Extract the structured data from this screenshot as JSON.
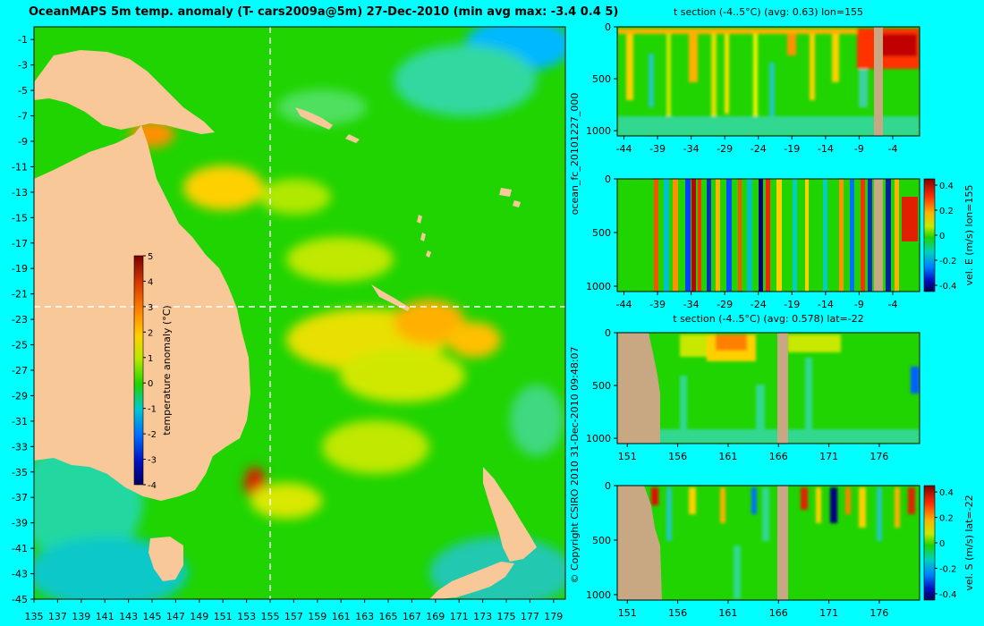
{
  "header": {
    "title": "OceanMAPS 5m temp. anomaly (T- cars2009a@5m) 27-Dec-2010 (min avg max: -3.4 0.4 5)"
  },
  "side_texts": {
    "run_id": "ocean_fc_20101227_000",
    "copyright": "© Copyright CSIRO 2010   31-Dec-2010 09:48:07"
  },
  "colors": {
    "land": "#f9c898",
    "section_land": "#c8a882",
    "background": "#00ffff",
    "ocean_base": "#1fd400",
    "crosshair": "#ffffff"
  },
  "chart_data": [
    {
      "id": "map",
      "type": "heatmap",
      "title": "OceanMAPS 5m temp. anomaly (T- cars2009a@5m) 27-Dec-2010 (min avg max: -3.4 0.4 5)",
      "x_ticks": [
        135,
        137,
        139,
        141,
        143,
        145,
        147,
        149,
        151,
        153,
        155,
        157,
        159,
        161,
        163,
        165,
        167,
        169,
        171,
        173,
        175,
        177,
        179
      ],
      "y_ticks": [
        -1,
        -3,
        -5,
        -7,
        -9,
        -11,
        -13,
        -15,
        -17,
        -19,
        -21,
        -23,
        -25,
        -27,
        -29,
        -31,
        -33,
        -35,
        -37,
        -39,
        -41,
        -43,
        -45
      ],
      "xlim": [
        135,
        180
      ],
      "ylim": [
        -45,
        0
      ],
      "crosshair": {
        "lon": 155,
        "lat": -22
      },
      "colorbar": {
        "label": "temperature anomaly (°C)",
        "ticks": [
          5,
          4,
          3,
          2,
          1,
          0,
          -1,
          -2,
          -3,
          -4
        ],
        "range": [
          -4,
          5
        ]
      }
    },
    {
      "id": "section1",
      "type": "heatmap",
      "title": "t section (-4..5°C) (avg: 0.63) lon=155",
      "x_ticks": [
        -44,
        -39,
        -34,
        -29,
        -24,
        -19,
        -14,
        -9,
        -4
      ],
      "y_ticks": [
        0,
        500,
        1000
      ],
      "xlim": [
        -45,
        0
      ],
      "ylim": [
        1050,
        0
      ]
    },
    {
      "id": "section2",
      "type": "heatmap",
      "title": "",
      "x_ticks": [
        -44,
        -39,
        -34,
        -29,
        -24,
        -19,
        -14,
        -9,
        -4
      ],
      "y_ticks": [
        0,
        500,
        1000
      ],
      "xlim": [
        -45,
        0
      ],
      "ylim": [
        1050,
        0
      ],
      "colorbar": {
        "label": "vel. E (m/s) lon=155",
        "ticks": [
          "0.4",
          "0.2",
          "0",
          "-0.2",
          "-0.4"
        ],
        "range": [
          -0.45,
          0.45
        ]
      }
    },
    {
      "id": "section3",
      "type": "heatmap",
      "title": "t section (-4..5°C) (avg: 0.578) lat=-22",
      "x_ticks": [
        151,
        156,
        161,
        166,
        171,
        176
      ],
      "y_ticks": [
        0,
        500,
        1000
      ],
      "xlim": [
        150,
        180
      ],
      "ylim": [
        1050,
        0
      ]
    },
    {
      "id": "section4",
      "type": "heatmap",
      "title": "",
      "x_ticks": [
        151,
        156,
        161,
        166,
        171,
        176
      ],
      "y_ticks": [
        0,
        500,
        1000
      ],
      "xlim": [
        150,
        180
      ],
      "ylim": [
        1050,
        0
      ],
      "colorbar": {
        "label": "vel. S (m/s) lat=-22",
        "ticks": [
          "0.4",
          "0.2",
          "0",
          "-0.2",
          "-0.4"
        ],
        "range": [
          -0.45,
          0.45
        ]
      }
    }
  ]
}
